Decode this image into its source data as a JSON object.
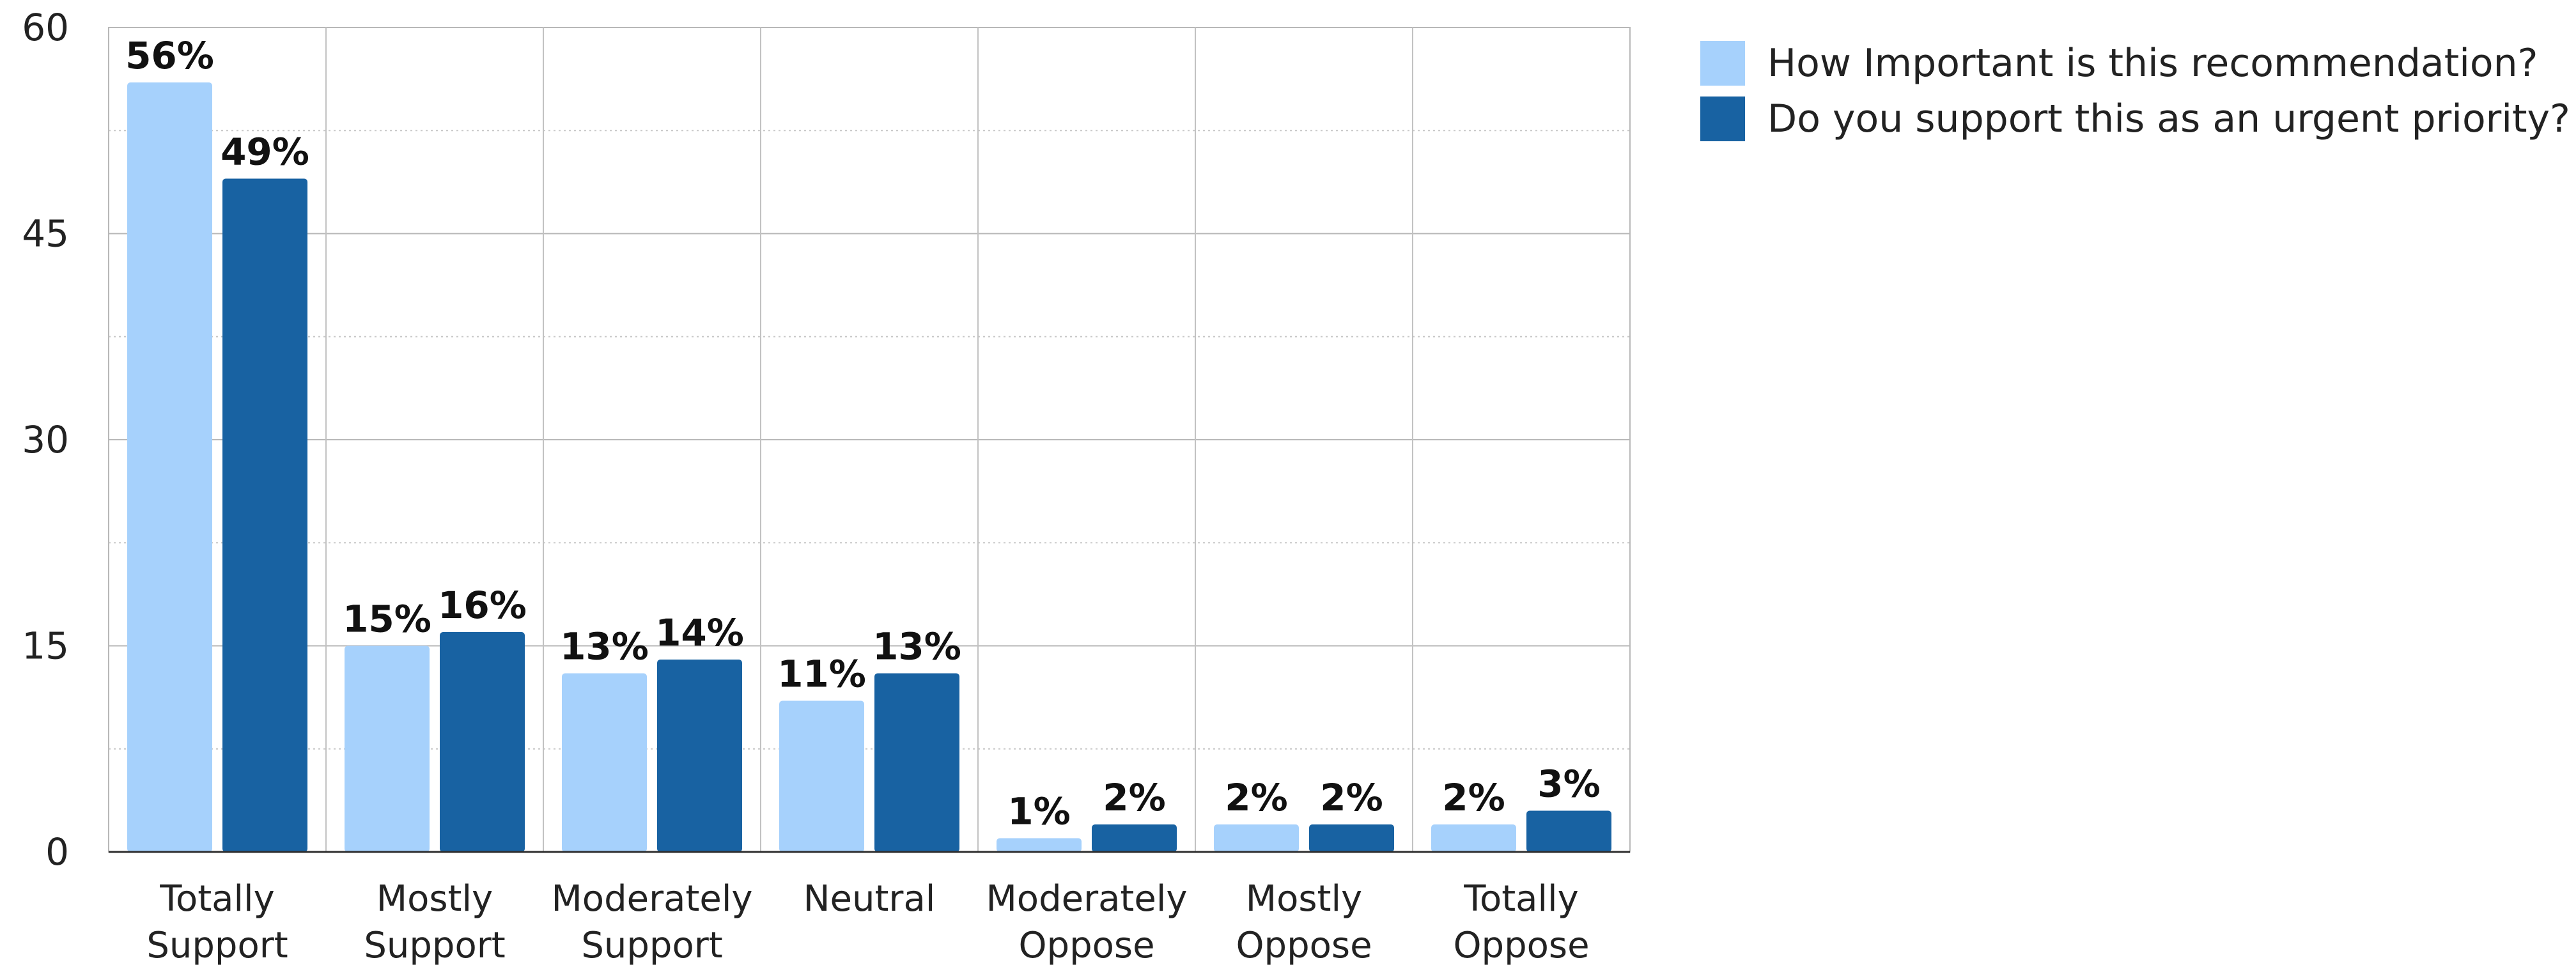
{
  "chart_data": {
    "type": "bar",
    "title": "",
    "xlabel": "",
    "ylabel": "",
    "ylim": [
      0,
      60
    ],
    "y_ticks": [
      0,
      15,
      30,
      45,
      60
    ],
    "y_minor_ticks": [
      7.5,
      22.5,
      37.5,
      52.5
    ],
    "grid": true,
    "legend_position": "top-right",
    "categories": [
      [
        "Totally",
        "Support"
      ],
      [
        "Mostly",
        "Support"
      ],
      [
        "Moderately",
        "Support"
      ],
      [
        "Neutral"
      ],
      [
        "Moderately",
        "Oppose"
      ],
      [
        "Mostly",
        "Oppose"
      ],
      [
        "Totally",
        "Oppose"
      ]
    ],
    "series": [
      {
        "name": "How Important is this recommendation?",
        "color": "#a6d1fc",
        "values": [
          56,
          15,
          13,
          11,
          1,
          2,
          2
        ],
        "labels": [
          "56%",
          "15%",
          "13%",
          "11%",
          "1%",
          "2%",
          "2%"
        ]
      },
      {
        "name": "Do you support this as an urgent priority?",
        "color": "#1862a2",
        "values": [
          49,
          16,
          14,
          13,
          2,
          2,
          3
        ],
        "labels": [
          "49%",
          "16%",
          "14%",
          "13%",
          "2%",
          "2%",
          "3%"
        ]
      }
    ]
  }
}
